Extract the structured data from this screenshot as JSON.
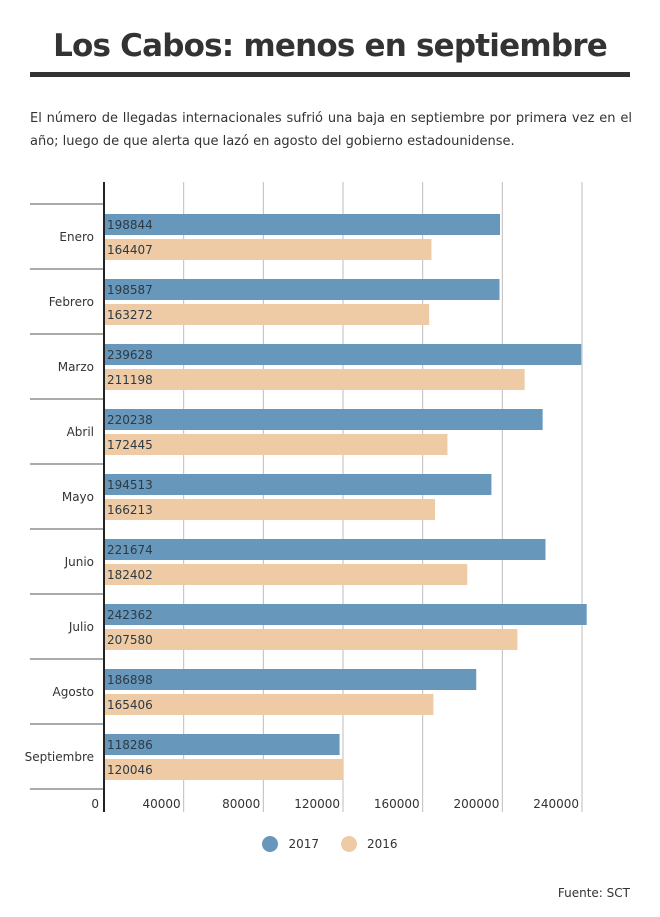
{
  "chart_data": {
    "type": "bar",
    "orientation": "horizontal",
    "title": "Los Cabos: menos en septiembre",
    "subtitle": "El número de llegadas internacionales sufrió una baja en septiembre por primera vez en el año; luego de que alerta que lazó en agosto del gobierno estadounidense.",
    "categories": [
      "Enero",
      "Febrero",
      "Marzo",
      "Abril",
      "Mayo",
      "Junio",
      "Julio",
      "Agosto",
      "Septiembre"
    ],
    "series": [
      {
        "name": "2017",
        "color": "#6797bb",
        "values": [
          198844,
          198587,
          239628,
          220238,
          194513,
          221674,
          242362,
          186898,
          118286
        ]
      },
      {
        "name": "2016",
        "color": "#eecba4",
        "values": [
          164407,
          163272,
          211198,
          172445,
          166213,
          182402,
          207580,
          165406,
          120046
        ]
      }
    ],
    "xlim": [
      0,
      260000
    ],
    "ticks": [
      0,
      40000,
      80000,
      120000,
      160000,
      200000,
      240000
    ],
    "tick_labels": [
      "0",
      "40000",
      "80000",
      "120000",
      "160000",
      "200000",
      "240000"
    ],
    "grid": true,
    "legend_position": "bottom-center",
    "source": "Fuente: SCT"
  }
}
